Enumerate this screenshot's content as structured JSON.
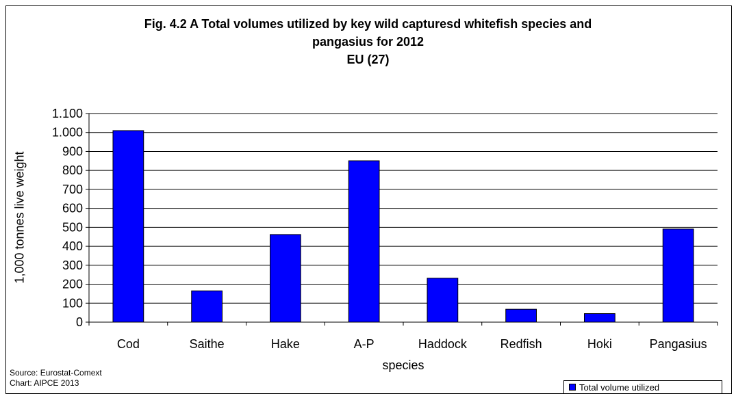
{
  "title_lines": [
    "Fig. 4.2 A  Total volumes utilized by key wild capturesd whitefish species and",
    "pangasius for 2012",
    "EU (27)"
  ],
  "source_lines": [
    "Source: Eurostat-Comext",
    "Chart: AIPCE 2013"
  ],
  "colors": {
    "bar": "#0000ff",
    "grid": "#000000"
  },
  "chart_data": {
    "type": "bar",
    "categories": [
      "Cod",
      "Saithe",
      "Hake",
      "A-P",
      "Haddock",
      "Redfish",
      "Hoki",
      "Pangasius"
    ],
    "series": [
      {
        "name": "Total volume utilized",
        "values": [
          1010,
          165,
          462,
          851,
          232,
          68,
          45,
          491
        ]
      }
    ],
    "title": "Fig. 4.2 A  Total volumes utilized by key wild capturesd whitefish species and pangasius for 2012 EU (27)",
    "xlabel": "species",
    "ylabel": "1,000 tonnes live weight",
    "ylim": [
      0,
      1100
    ],
    "yticks": [
      0,
      100,
      200,
      300,
      400,
      500,
      600,
      700,
      800,
      900,
      1000,
      1100
    ],
    "ytick_labels": [
      "0",
      "100",
      "200",
      "300",
      "400",
      "500",
      "600",
      "700",
      "800",
      "900",
      "1.000",
      "1.100"
    ],
    "grid": true,
    "legend_position": "bottom-right"
  }
}
